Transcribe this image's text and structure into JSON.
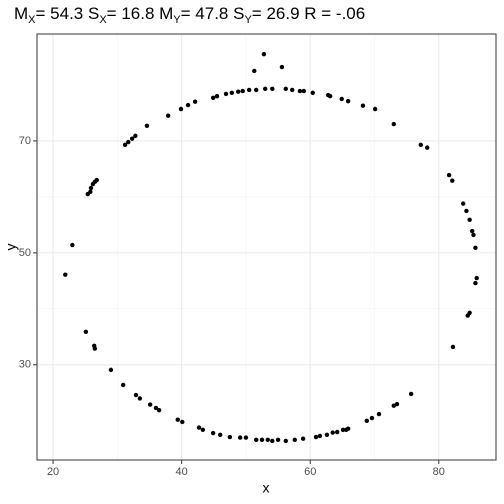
{
  "chart_data": {
    "type": "scatter",
    "title": [
      "M",
      "X",
      "= 54.3 S",
      "X",
      "= 16.8 M",
      "Y",
      "= 47.8 S",
      "Y",
      "= 26.9 R = -.06"
    ],
    "x_label": "x",
    "y_label": "y",
    "xlim": [
      17.5,
      88.9
    ],
    "ylim": [
      13.0,
      89.1
    ],
    "xticks": [
      20,
      40,
      60,
      80
    ],
    "yticks": [
      30,
      50,
      70
    ],
    "grid": true,
    "color": "#000000",
    "x": [
      52.8,
      51.3,
      55.6,
      44.9,
      45.5,
      46.9,
      47.8,
      48.8,
      49.5,
      50.5,
      51.6,
      53.0,
      54.1,
      56.2,
      57.2,
      58.4,
      59.0,
      60.4,
      62.8,
      63.1,
      64.9,
      65.9,
      68.2,
      70.1,
      73.0,
      77.2,
      78.2,
      42.1,
      41.0,
      39.9,
      37.9,
      34.6,
      32.8,
      32.3,
      31.7,
      31.2,
      26.8,
      26.5,
      26.2,
      25.9,
      25.8,
      25.4,
      23.0,
      21.9,
      25.1,
      26.4,
      26.5,
      29.0,
      30.9,
      32.9,
      33.5,
      35.1,
      36.0,
      36.5,
      39.4,
      40.1,
      42.7,
      43.3,
      44.9,
      46.0,
      47.5,
      49.1,
      50.0,
      51.6,
      52.5,
      53.4,
      54.1,
      55.0,
      56.2,
      57.6,
      58.9,
      60.9,
      61.5,
      62.6,
      63.5,
      64.2,
      65.1,
      65.6,
      65.9,
      68.8,
      69.6,
      70.7,
      73.0,
      73.5,
      75.7,
      81.6,
      82.1,
      83.8,
      84.3,
      84.8,
      85.2,
      85.4,
      85.7,
      85.9,
      85.7,
      84.8,
      84.5,
      82.2
    ],
    "y": [
      85.5,
      82.5,
      83.2,
      77.7,
      78.0,
      78.4,
      78.6,
      78.8,
      78.9,
      79.1,
      79.1,
      79.3,
      79.3,
      79.3,
      79.1,
      78.9,
      78.9,
      78.6,
      78.2,
      78.0,
      77.5,
      77.1,
      76.3,
      75.7,
      73.0,
      69.3,
      68.8,
      77.0,
      76.4,
      75.7,
      74.5,
      72.7,
      70.9,
      70.4,
      69.8,
      69.3,
      63.0,
      62.7,
      62.3,
      61.6,
      60.9,
      60.5,
      51.4,
      46.1,
      35.9,
      33.4,
      32.9,
      29.1,
      26.4,
      24.6,
      24.0,
      22.9,
      22.3,
      21.9,
      20.2,
      19.8,
      18.8,
      18.4,
      17.8,
      17.5,
      17.1,
      17.0,
      17.0,
      16.6,
      16.6,
      16.6,
      16.4,
      16.6,
      16.4,
      16.6,
      16.8,
      17.1,
      17.3,
      17.5,
      17.9,
      18.0,
      18.4,
      18.4,
      18.6,
      20.0,
      20.5,
      21.2,
      22.7,
      23.0,
      24.8,
      63.9,
      62.9,
      58.8,
      57.5,
      55.9,
      53.9,
      53.2,
      50.9,
      45.5,
      44.6,
      39.3,
      38.8,
      33.2
    ]
  }
}
